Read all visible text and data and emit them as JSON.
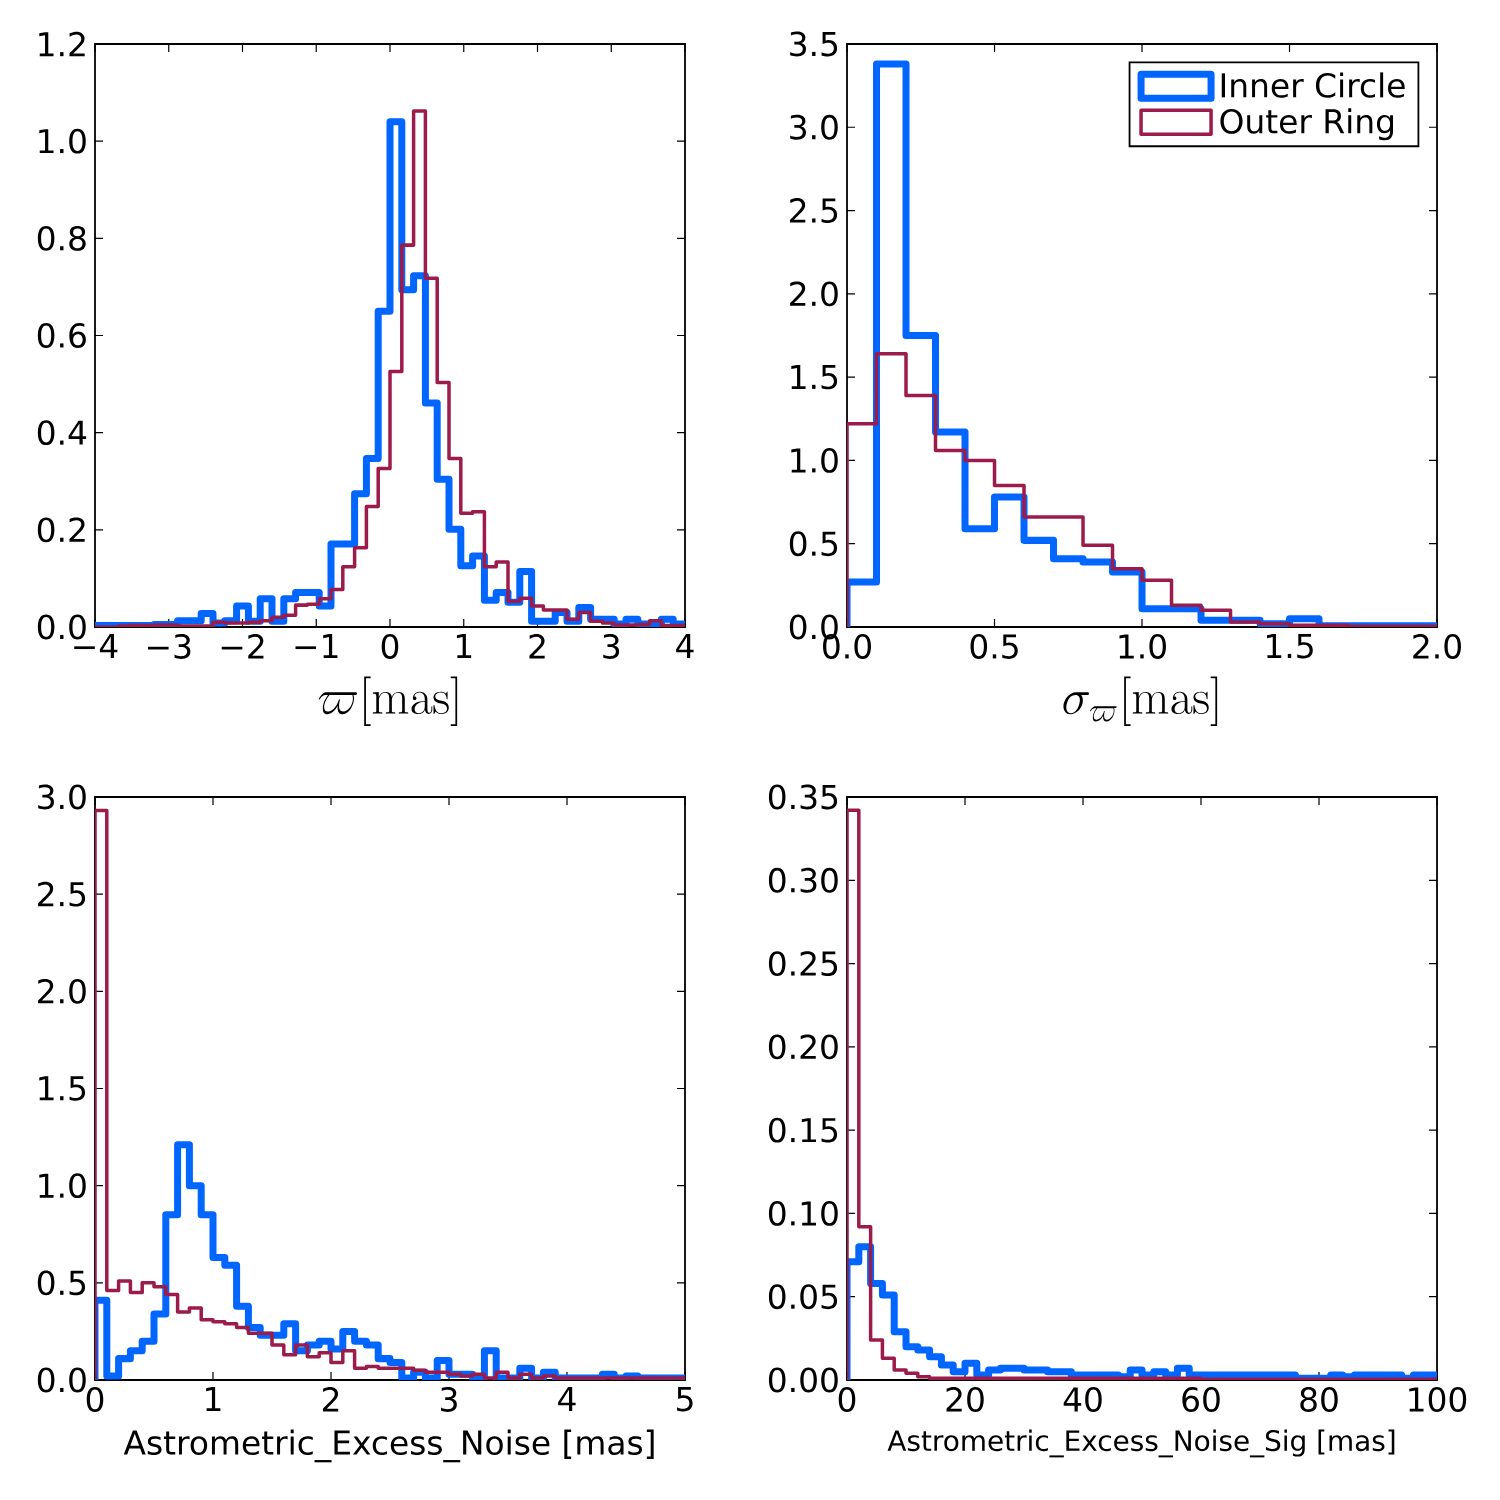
{
  "chart_data": [
    {
      "type": "histogram",
      "xlabel": "\\varpi[\\mathrm{mas}]",
      "xlim": [
        -4,
        4
      ],
      "ylim": [
        0,
        1.2
      ],
      "xticks": [
        {
          "value": -4,
          "label": "−4"
        },
        {
          "value": -3,
          "label": "−3"
        },
        {
          "value": -2,
          "label": "−2"
        },
        {
          "value": -1,
          "label": "−1"
        },
        0,
        1,
        2,
        3,
        4
      ],
      "yticks": [
        {
          "value": 0,
          "label": "0.0"
        },
        0.2,
        0.4,
        0.6,
        0.8,
        {
          "value": 1,
          "label": "1.0"
        },
        1.2
      ],
      "bins": [
        -4,
        -3.84,
        -3.68,
        -3.52,
        -3.36,
        -3.2,
        -3.04,
        -2.88,
        -2.72,
        -2.56,
        -2.4,
        -2.24,
        -2.08,
        -1.92,
        -1.76,
        -1.6,
        -1.44,
        -1.28,
        -1.12,
        -0.96,
        -0.8,
        -0.64,
        -0.48,
        -0.32,
        -0.16,
        0,
        0.16,
        0.32,
        0.48,
        0.64,
        0.8,
        0.96,
        1.12,
        1.28,
        1.44,
        1.6,
        1.76,
        1.92,
        2.08,
        2.24,
        2.4,
        2.56,
        2.72,
        2.88,
        3.04,
        3.2,
        3.36,
        3.52,
        3.68,
        3.84,
        4
      ],
      "series": [
        {
          "color": "#0066ff",
          "values": [
            0.003,
            0.003,
            0.003,
            0.003,
            0.003,
            0.005,
            0.005,
            0.013,
            0.013,
            0.028,
            0.008,
            0.013,
            0.043,
            0.012,
            0.058,
            0.012,
            0.058,
            0.071,
            0.071,
            0.043,
            0.171,
            0.171,
            0.274,
            0.347,
            0.65,
            1.04,
            0.694,
            0.723,
            0.461,
            0.304,
            0.201,
            0.126,
            0.146,
            0.055,
            0.071,
            0.051,
            0.114,
            0.012,
            0.012,
            0.03,
            0.012,
            0.04,
            0.016,
            0.016,
            0.006,
            0.016,
            0.006,
            0.006,
            0.016,
            0.006
          ]
        },
        {
          "color": "#9b1b4b",
          "values": [
            0,
            0,
            0.002,
            0.003,
            0.003,
            0.004,
            0.004,
            0.002,
            0.002,
            0.002,
            0.01,
            0.008,
            0.008,
            0.01,
            0.013,
            0.02,
            0.024,
            0.045,
            0.047,
            0.058,
            0.077,
            0.124,
            0.163,
            0.248,
            0.326,
            0.526,
            0.786,
            1.062,
            0.718,
            0.503,
            0.347,
            0.234,
            0.237,
            0.124,
            0.134,
            0.053,
            0.059,
            0.043,
            0.035,
            0.035,
            0.016,
            0.03,
            0.012,
            0.008,
            0.004,
            0.004,
            0.005,
            0.013,
            0.003,
            0.003
          ]
        }
      ]
    },
    {
      "type": "histogram",
      "xlabel": "\\sigma_{\\varpi}[\\mathrm{mas}]",
      "xlim": [
        0,
        2
      ],
      "ylim": [
        0,
        3.5
      ],
      "legend": "top right",
      "xticks": [
        {
          "value": 0,
          "label": "0.0"
        },
        0.5,
        {
          "value": 1,
          "label": "1.0"
        },
        1.5,
        {
          "value": 2,
          "label": "2.0"
        }
      ],
      "yticks": [
        {
          "value": 0,
          "label": "0.0"
        },
        0.5,
        {
          "value": 1,
          "label": "1.0"
        },
        1.5,
        {
          "value": 2,
          "label": "2.0"
        },
        2.5,
        {
          "value": 3,
          "label": "3.0"
        },
        3.5
      ],
      "bins": [
        0,
        0.1,
        0.2,
        0.3,
        0.4,
        0.5,
        0.6,
        0.7,
        0.8,
        0.9,
        1.0,
        1.1,
        1.2,
        1.3,
        1.4,
        1.5,
        1.6,
        1.7,
        1.8,
        1.9,
        2.0
      ],
      "series": [
        {
          "name": "Inner Circle",
          "color": "#0066ff",
          "values": [
            0.27,
            3.38,
            1.75,
            1.17,
            0.59,
            0.78,
            0.52,
            0.41,
            0.39,
            0.33,
            0.11,
            0.11,
            0.04,
            0.04,
            0.02,
            0.05,
            0.007,
            0.007,
            0.007,
            0.007
          ]
        },
        {
          "name": "Outer Ring",
          "color": "#9b1b4b",
          "values": [
            1.22,
            1.64,
            1.39,
            1.06,
            1.0,
            0.85,
            0.66,
            0.66,
            0.49,
            0.35,
            0.28,
            0.13,
            0.1,
            0.03,
            0.02,
            0.01,
            0.01,
            0.005,
            0.005,
            0.005
          ]
        }
      ]
    },
    {
      "type": "histogram",
      "xlabel": "Astrometric_Excess_Noise [mas]",
      "xlim": [
        0,
        5
      ],
      "ylim": [
        0,
        3
      ],
      "xticks": [
        0,
        1,
        2,
        3,
        4,
        5
      ],
      "yticks": [
        {
          "value": 0,
          "label": "0.0"
        },
        0.5,
        {
          "value": 1,
          "label": "1.0"
        },
        1.5,
        {
          "value": 2,
          "label": "2.0"
        },
        2.5,
        {
          "value": 3,
          "label": "3.0"
        }
      ],
      "bins": [
        0,
        0.1,
        0.2,
        0.3,
        0.4,
        0.5,
        0.6,
        0.7,
        0.8,
        0.9,
        1.0,
        1.1,
        1.2,
        1.3,
        1.4,
        1.5,
        1.6,
        1.7,
        1.8,
        1.9,
        2.0,
        2.1,
        2.2,
        2.3,
        2.4,
        2.5,
        2.6,
        2.7,
        2.8,
        2.9,
        3.0,
        3.1,
        3.2,
        3.3,
        3.4,
        3.5,
        3.6,
        3.7,
        3.8,
        3.9,
        4.0,
        4.1,
        4.2,
        4.3,
        4.4,
        4.5,
        4.6,
        4.7,
        4.8,
        4.9,
        5.0
      ],
      "series": [
        {
          "color": "#0066ff",
          "values": [
            0.41,
            0.02,
            0.11,
            0.15,
            0.2,
            0.34,
            0.85,
            1.21,
            1.0,
            0.85,
            0.63,
            0.59,
            0.38,
            0.27,
            0.23,
            0.23,
            0.29,
            0.15,
            0.18,
            0.2,
            0.16,
            0.25,
            0.2,
            0.18,
            0.11,
            0.09,
            0.01,
            0.04,
            0.01,
            0.1,
            0.03,
            0.03,
            0.01,
            0.15,
            0.01,
            0.01,
            0.06,
            0.01,
            0.04,
            0.01,
            0.01,
            0.01,
            0.01,
            0.03,
            0.01,
            0.02,
            0.01,
            0.01,
            0.01,
            0.01
          ]
        },
        {
          "color": "#9b1b4b",
          "values": [
            2.93,
            0.46,
            0.51,
            0.45,
            0.5,
            0.48,
            0.44,
            0.35,
            0.37,
            0.31,
            0.3,
            0.29,
            0.27,
            0.24,
            0.24,
            0.18,
            0.13,
            0.18,
            0.12,
            0.14,
            0.09,
            0.15,
            0.06,
            0.07,
            0.06,
            0.06,
            0.06,
            0.05,
            0.04,
            0.04,
            0.03,
            0.02,
            0.03,
            0.01,
            0.04,
            0.01,
            0.03,
            0.01,
            0.02,
            0.01,
            0.01,
            0.01,
            0.01,
            0.01,
            0.01,
            0.01,
            0.01,
            0.01,
            0.01,
            0.01
          ]
        }
      ]
    },
    {
      "type": "histogram",
      "xlabel": "Astrometric_Excess_Noise_Sig [mas]",
      "xlim": [
        0,
        100
      ],
      "ylim": [
        0,
        0.35
      ],
      "xticks": [
        0,
        20,
        40,
        60,
        80,
        100
      ],
      "yticks": [
        {
          "value": 0,
          "label": "0.00"
        },
        0.05,
        {
          "value": 0.1,
          "label": "0.10"
        },
        0.15,
        {
          "value": 0.2,
          "label": "0.20"
        },
        0.25,
        {
          "value": 0.3,
          "label": "0.30"
        },
        0.35
      ],
      "bins": [
        0,
        2,
        4,
        6,
        8,
        10,
        12,
        14,
        16,
        18,
        20,
        22,
        24,
        26,
        28,
        30,
        32,
        34,
        36,
        38,
        40,
        42,
        44,
        46,
        48,
        50,
        52,
        54,
        56,
        58,
        60,
        62,
        64,
        66,
        68,
        70,
        72,
        74,
        76,
        78,
        80,
        82,
        84,
        86,
        88,
        90,
        92,
        94,
        96,
        98,
        100
      ],
      "series": [
        {
          "color": "#0066ff",
          "values": [
            0.071,
            0.08,
            0.058,
            0.051,
            0.029,
            0.02,
            0.018,
            0.014,
            0.009,
            0.005,
            0.01,
            0.003,
            0.006,
            0.007,
            0.007,
            0.006,
            0.006,
            0.005,
            0.005,
            0.003,
            0.003,
            0.003,
            0.003,
            0.002,
            0.006,
            0.003,
            0.005,
            0.003,
            0.007,
            0.003,
            0.003,
            0.003,
            0.003,
            0.003,
            0.003,
            0.003,
            0.003,
            0.003,
            0.001,
            0.001,
            0.001,
            0.003,
            0.002,
            0.003,
            0.003,
            0.003,
            0.003,
            0.001,
            0.003,
            0.003
          ]
        },
        {
          "color": "#9b1b4b",
          "values": [
            0.342,
            0.092,
            0.024,
            0.013,
            0.006,
            0.004,
            0.002,
            0.001,
            0.001,
            0.001,
            0.001,
            0.001,
            0.001,
            0.001,
            0.001,
            0.001,
            0.001,
            0.001,
            0.001,
            0.001,
            0.001,
            0.001,
            0.001,
            0.001,
            0.001,
            0.001,
            0.001,
            0.001,
            0.001,
            0.001,
            0.0005,
            0.0005,
            0.0005,
            0.0005,
            0.0005,
            0.0005,
            0.0005,
            0.0005,
            0.0005,
            0.0005,
            0.0005,
            0.0005,
            0.0005,
            0.0005,
            0.0005,
            0.0005,
            0.0005,
            0.0005,
            0.0005,
            0.0005
          ]
        }
      ]
    }
  ]
}
